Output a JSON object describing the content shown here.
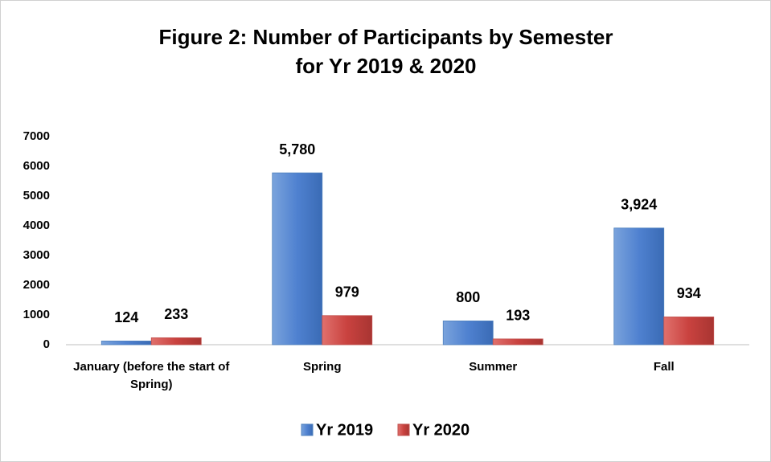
{
  "chart_data": {
    "type": "bar",
    "title": [
      "Figure 2: Number of Participants by Semester",
      "for Yr 2019 & 2020"
    ],
    "categories": [
      "January (before the start of Spring)",
      "Spring",
      "Summer",
      "Fall"
    ],
    "series": [
      {
        "name": "Yr 2019",
        "color": "#4f81bd",
        "values": [
          124,
          5780,
          800,
          3924
        ],
        "value_labels": [
          "124",
          "5,780",
          "800",
          "3,924"
        ]
      },
      {
        "name": "Yr 2020",
        "color": "#c0504d",
        "values": [
          233,
          979,
          193,
          934
        ],
        "value_labels": [
          "233",
          "979",
          "193",
          "934"
        ]
      }
    ],
    "ylim": [
      0,
      7000
    ],
    "yticks": [
      0,
      1000,
      2000,
      3000,
      4000,
      5000,
      6000,
      7000
    ],
    "grid": false,
    "legend": "bottom"
  }
}
